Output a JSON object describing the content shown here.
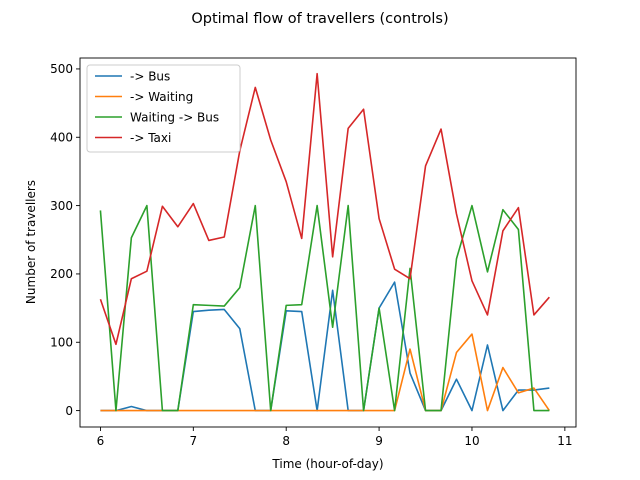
{
  "chart_data": {
    "type": "line",
    "title": "Optimal flow of travellers (controls)",
    "xlabel": "Time (hour-of-day)",
    "ylabel": "Number of travellers",
    "xlim": [
      5.78,
      11.12
    ],
    "ylim": [
      -24,
      516
    ],
    "xticks": [
      6,
      7,
      8,
      9,
      10,
      11
    ],
    "yticks": [
      0,
      100,
      200,
      300,
      400,
      500
    ],
    "grid": false,
    "legend_position": "top-left",
    "x": [
      6.0,
      6.167,
      6.333,
      6.5,
      6.667,
      6.833,
      7.0,
      7.167,
      7.333,
      7.5,
      7.667,
      7.833,
      8.0,
      8.167,
      8.333,
      8.5,
      8.667,
      8.833,
      9.0,
      9.167,
      9.333,
      9.5,
      9.667,
      9.833,
      10.0,
      10.167,
      10.333,
      10.5,
      10.667,
      10.833
    ],
    "series": [
      {
        "name": "-> Bus",
        "color": "#1f77b4",
        "values": [
          0,
          0,
          6,
          0,
          0,
          0,
          145,
          147,
          148,
          120,
          0,
          0,
          146,
          145,
          0,
          176,
          0,
          0,
          150,
          188,
          55,
          0,
          0,
          46,
          0,
          96,
          0,
          30,
          30,
          33
        ]
      },
      {
        "name": "-> Waiting",
        "color": "#ff7f0e",
        "values": [
          0,
          0,
          0,
          0,
          0,
          0,
          0,
          0,
          0,
          0,
          0,
          0,
          0,
          0,
          0,
          0,
          0,
          0,
          0,
          0,
          90,
          0,
          0,
          85,
          112,
          0,
          63,
          26,
          33,
          0
        ]
      },
      {
        "name": "Waiting -> Bus",
        "color": "#2ca02c",
        "values": [
          293,
          0,
          253,
          300,
          0,
          0,
          155,
          154,
          153,
          180,
          300,
          0,
          154,
          155,
          300,
          122,
          300,
          0,
          150,
          0,
          208,
          0,
          0,
          222,
          300,
          203,
          294,
          265,
          0,
          0
        ]
      },
      {
        "name": "-> Taxi",
        "color": "#d62728",
        "values": [
          163,
          97,
          193,
          204,
          299,
          269,
          303,
          249,
          254,
          380,
          473,
          396,
          335,
          252,
          493,
          225,
          413,
          441,
          281,
          207,
          193,
          358,
          412,
          288,
          190,
          140,
          263,
          297,
          140,
          166
        ]
      }
    ]
  }
}
